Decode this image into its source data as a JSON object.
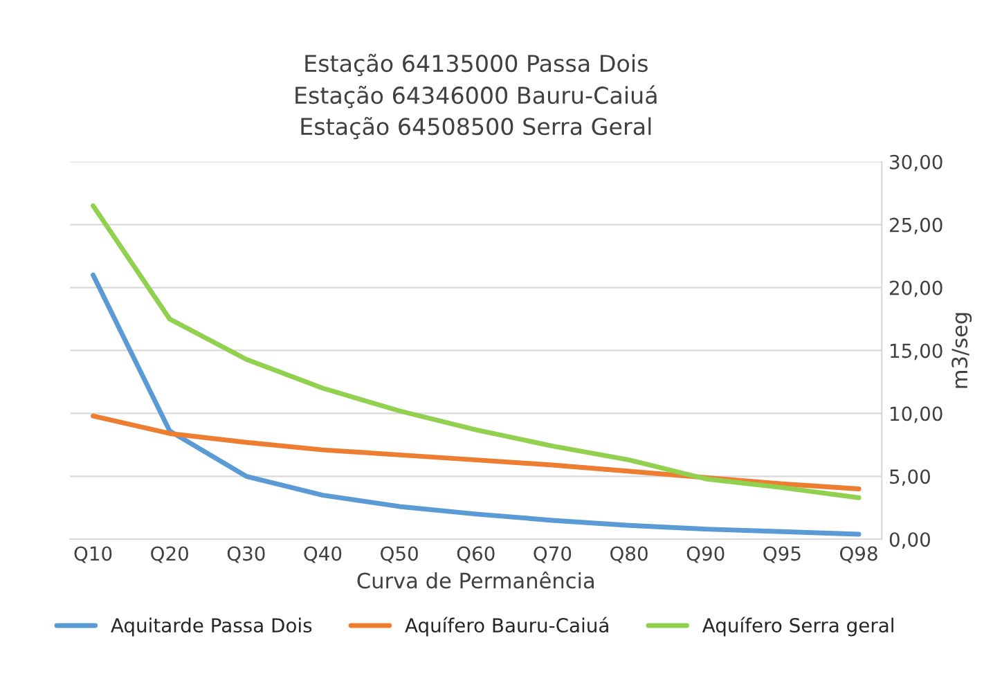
{
  "chart_data": {
    "type": "line",
    "title": "Estação 64135000 Passa Dois\nEstação 64346000 Bauru-Caiuá\nEstação 64508500 Serra Geral",
    "xlabel": "Curva de Permanência",
    "ylabel": "m3/seg",
    "categories": [
      "Q10",
      "Q20",
      "Q30",
      "Q40",
      "Q50",
      "Q60",
      "Q70",
      "Q80",
      "Q90",
      "Q95",
      "Q98"
    ],
    "series": [
      {
        "name": "Aquitarde Passa Dois",
        "color": "#5b9bd5",
        "values": [
          21.0,
          8.6,
          5.0,
          3.5,
          2.6,
          2.0,
          1.5,
          1.1,
          0.8,
          0.6,
          0.4
        ]
      },
      {
        "name": "Aquífero Bauru-Caiuá",
        "color": "#ed7d31",
        "values": [
          9.8,
          8.4,
          7.7,
          7.1,
          6.7,
          6.3,
          5.9,
          5.4,
          4.9,
          4.4,
          4.0
        ]
      },
      {
        "name": "Aquífero Serra geral",
        "color": "#92d050",
        "values": [
          26.5,
          17.5,
          14.3,
          12.0,
          10.2,
          8.7,
          7.4,
          6.3,
          4.8,
          4.1,
          3.3
        ]
      }
    ],
    "ylim": [
      0,
      30
    ],
    "yticks": [
      {
        "value": 0,
        "label": "0,00"
      },
      {
        "value": 5,
        "label": "5,00"
      },
      {
        "value": 10,
        "label": "10,00"
      },
      {
        "value": 15,
        "label": "15,00"
      },
      {
        "value": 20,
        "label": "20,00"
      },
      {
        "value": 25,
        "label": "25,00"
      },
      {
        "value": 30,
        "label": "30,00"
      }
    ],
    "grid": "y",
    "legend": "bottom",
    "marker": "none",
    "line_style": "solid"
  }
}
